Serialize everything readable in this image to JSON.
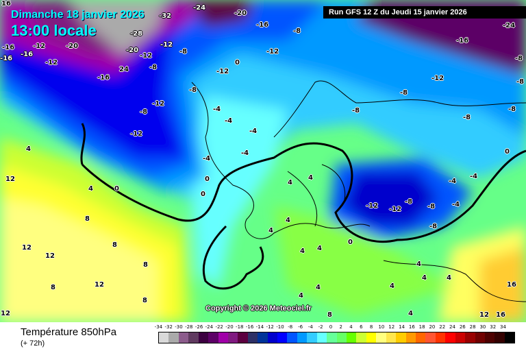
{
  "header": {
    "date": "Dimanche 18 janvier 2026",
    "time": "13:00 locale",
    "run": "Run GFS 12 Z du Jeudi 15 janvier 2026"
  },
  "copyright": "Copyright © 2026 Meteociel.fr",
  "footer": {
    "title": "Température 850hPa",
    "subtitle": "(+ 72h)"
  },
  "legend": {
    "unit_values": [
      "-34",
      "-32",
      "-30",
      "-28",
      "-26",
      "-24",
      "-22",
      "-20",
      "-18",
      "-16",
      "-14",
      "-12",
      "-10",
      "-8",
      "-6",
      "-4",
      "-2",
      "0",
      "2",
      "4",
      "6",
      "8",
      "10",
      "12",
      "14",
      "16",
      "18",
      "20",
      "22",
      "24",
      "26",
      "28",
      "30",
      "32",
      "34"
    ],
    "colors": [
      "#d9d9d9",
      "#aaaaaa",
      "#8c5c8c",
      "#603a60",
      "#3c0040",
      "#5c0066",
      "#a000a8",
      "#801a80",
      "#5c0040",
      "#2e3066",
      "#003399",
      "#0000cc",
      "#0000ff",
      "#0055ff",
      "#0099ff",
      "#33ccff",
      "#66ffff",
      "#66ff99",
      "#66ff66",
      "#66ff00",
      "#ccff33",
      "#ffff00",
      "#ffff80",
      "#ffe64d",
      "#ffcc00",
      "#ff9900",
      "#ff6600",
      "#ff5533",
      "#ff3300",
      "#ff0000",
      "#cc0000",
      "#990000",
      "#700000",
      "#4d0000",
      "#330000",
      "#000000"
    ]
  },
  "map_labels": [
    "16",
    "-16",
    "-12",
    "-20",
    "-12",
    "-16",
    "24",
    "-12",
    "-8",
    "-12",
    "-8",
    "-12",
    "-8",
    "-20",
    "-16",
    "-8",
    "-12",
    "-12",
    "0",
    "-8",
    "-4",
    "-4",
    "-4",
    "-4",
    "-4",
    "0",
    "0",
    "0",
    "4",
    "4",
    "12",
    "8",
    "12",
    "12",
    "8",
    "8",
    "12",
    "8",
    "8",
    "12",
    "4",
    "4",
    "4",
    "4",
    "4",
    "4",
    "4",
    "4",
    "4",
    "4",
    "0",
    "-12",
    "-12",
    "-8",
    "-8",
    "-8",
    "-4",
    "-4",
    "-4",
    "0",
    "-8",
    "-8",
    "-8",
    "-8",
    "-12",
    "-16",
    "-8",
    "-8",
    "-24",
    "16",
    "12",
    "16",
    "8",
    "4",
    "4",
    "4",
    "-32",
    "-28",
    "-20",
    "-12",
    "-16",
    "-16",
    "-24"
  ]
}
